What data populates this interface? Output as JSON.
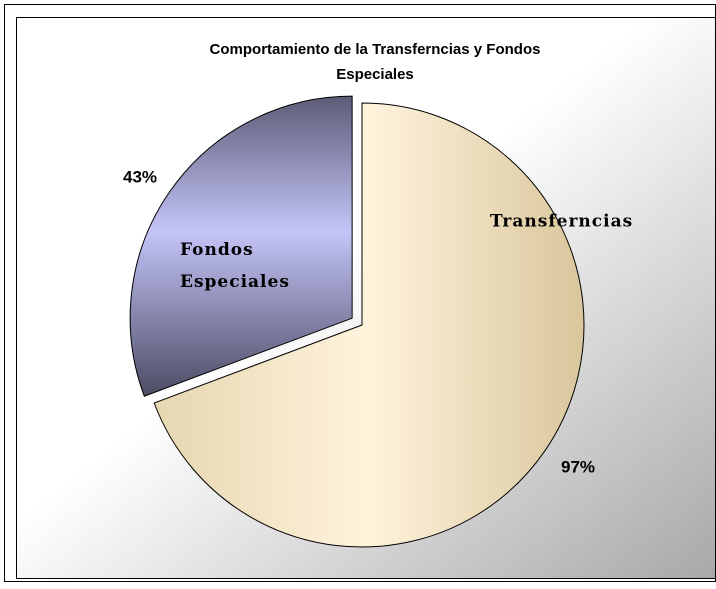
{
  "chart_data": {
    "type": "pie",
    "title": "Comportamiento de la Transferncias  y Fondos Especiales",
    "categories": [
      "Transferncias",
      "Fondos Especiales"
    ],
    "values": [
      97,
      43
    ],
    "value_labels": [
      "97%",
      "43%"
    ],
    "colors": [
      "#f5e6c4",
      "#b8b8ec"
    ]
  }
}
